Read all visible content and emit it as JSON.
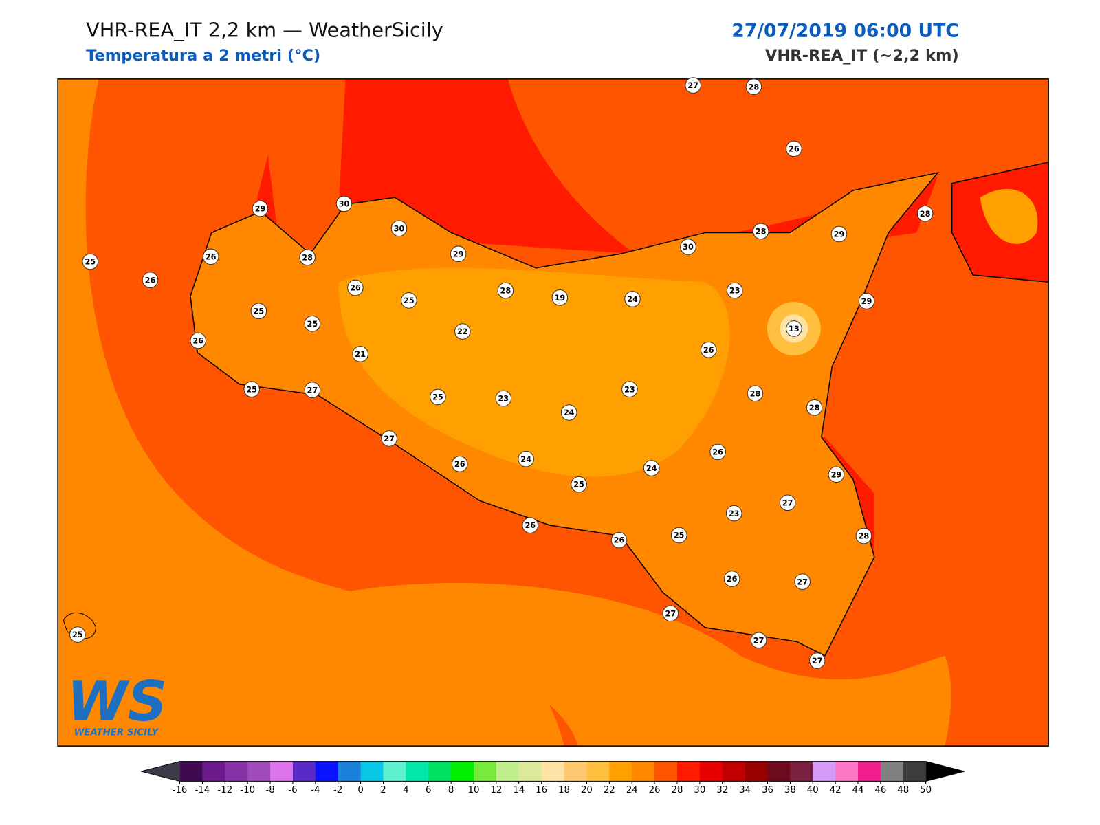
{
  "header": {
    "title": "VHR-REA_IT 2,2 km — WeatherSicily",
    "subtitle": "Temperatura a 2 metri (°C)",
    "datetime": "27/07/2019 06:00 UTC",
    "model": "VHR-REA_IT (~2,2 km)"
  },
  "logo": {
    "mark": "WS",
    "name": "WEATHER SICILY"
  },
  "stations": [
    27,
    28,
    26,
    29,
    30,
    30,
    29,
    25,
    26,
    28,
    26,
    26,
    25,
    28,
    19,
    30,
    28,
    29,
    28,
    23,
    24,
    29,
    25,
    25,
    13,
    22,
    26,
    21,
    26,
    25,
    27,
    23,
    25,
    23,
    24,
    28,
    28,
    27,
    26,
    26,
    24,
    24,
    29,
    25,
    27,
    23,
    26,
    25,
    26,
    28,
    26,
    27,
    27,
    25,
    27,
    27
  ],
  "colorbar": {
    "ticks": [
      -16,
      -14,
      -12,
      -10,
      -8,
      -6,
      -4,
      -2,
      0,
      2,
      4,
      6,
      8,
      10,
      12,
      14,
      16,
      18,
      20,
      22,
      24,
      26,
      28,
      30,
      32,
      34,
      36,
      38,
      40,
      42,
      44,
      46,
      48,
      50
    ],
    "colors": [
      "#3f0a52",
      "#6a1a8a",
      "#8433a6",
      "#a04bba",
      "#dd73ea",
      "#5a2ac8",
      "#0a12ff",
      "#1a80da",
      "#0ac6e6",
      "#5ef0d0",
      "#00e8a8",
      "#00e060",
      "#00ee00",
      "#78ea3c",
      "#c2ef8e",
      "#dde99a",
      "#ffe2a6",
      "#fdc870",
      "#ffc040",
      "#ffa000",
      "#ff8800",
      "#ff5500",
      "#ff1a00",
      "#e60000",
      "#c00000",
      "#980000",
      "#6e0a1e",
      "#7a2040",
      "#d59cf7",
      "#ff78c8",
      "#f01e8c",
      "#808080",
      "#3c3c3c"
    ],
    "under_color": "#3c3c48",
    "over_color": "#000000"
  }
}
